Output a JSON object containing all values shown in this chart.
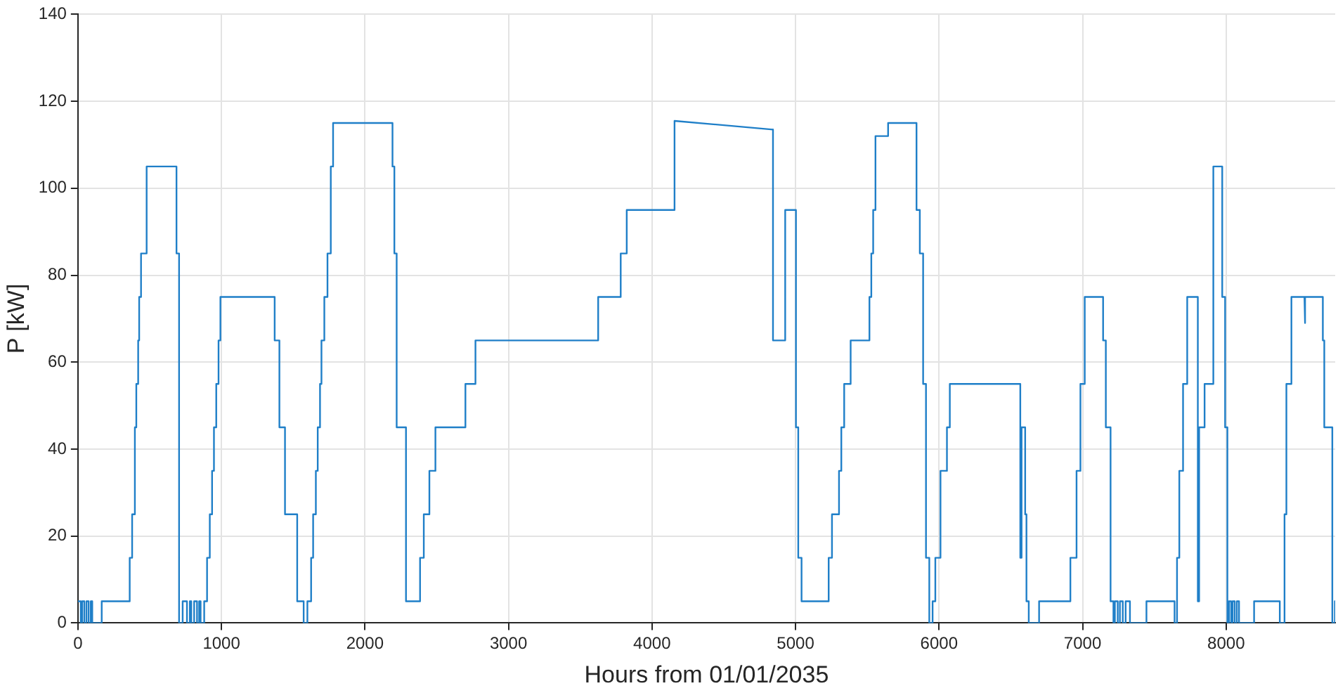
{
  "chart_data": {
    "type": "line",
    "xlabel": "Hours from 01/01/2035",
    "ylabel": "P [kW]",
    "xlim": [
      0,
      8760
    ],
    "xticks": [
      0,
      1000,
      2000,
      3000,
      4000,
      5000,
      6000,
      7000,
      8000
    ],
    "ylim": [
      0,
      140
    ],
    "yticks": [
      0,
      20,
      40,
      60,
      80,
      100,
      120,
      140
    ],
    "grid": true,
    "marker": "none",
    "line_style": "solid",
    "series": [
      {
        "color": "#1f7fc8",
        "x": [
          0,
          20,
          20,
          30,
          30,
          45,
          45,
          60,
          60,
          75,
          75,
          90,
          90,
          100,
          100,
          166,
          166,
          361,
          361,
          378,
          378,
          397,
          397,
          407,
          407,
          420,
          420,
          427,
          427,
          440,
          440,
          479,
          479,
          687,
          687,
          705,
          705,
          730,
          730,
          760,
          760,
          780,
          780,
          790,
          790,
          810,
          810,
          830,
          830,
          845,
          845,
          855,
          855,
          880,
          880,
          900,
          900,
          919,
          919,
          935,
          935,
          948,
          948,
          964,
          964,
          980,
          980,
          993,
          993,
          1371,
          1371,
          1404,
          1404,
          1443,
          1443,
          1528,
          1528,
          1573,
          1573,
          1599,
          1599,
          1625,
          1625,
          1639,
          1639,
          1658,
          1658,
          1671,
          1671,
          1687,
          1687,
          1697,
          1697,
          1717,
          1717,
          1739,
          1739,
          1762,
          1762,
          1778,
          1778,
          2192,
          2192,
          2205,
          2205,
          2221,
          2221,
          2286,
          2286,
          2384,
          2384,
          2410,
          2410,
          2449,
          2449,
          2491,
          2491,
          2700,
          2700,
          2770,
          2770,
          3625,
          3625,
          3782,
          3782,
          3824,
          3824,
          4157,
          4157,
          4843,
          4843,
          4928,
          4928,
          5003,
          5003,
          5019,
          5019,
          5042,
          5042,
          5231,
          5231,
          5254,
          5254,
          5303,
          5303,
          5319,
          5319,
          5339,
          5339,
          5384,
          5384,
          5515,
          5515,
          5528,
          5528,
          5541,
          5541,
          5557,
          5557,
          5645,
          5645,
          5843,
          5843,
          5866,
          5866,
          5889,
          5889,
          5909,
          5909,
          5932,
          5932,
          5955,
          5955,
          5974,
          5974,
          6010,
          6010,
          6055,
          6055,
          6075,
          6075,
          6566,
          6566,
          6575,
          6575,
          6600,
          6600,
          6609,
          6609,
          6625,
          6625,
          6697,
          6697,
          6915,
          6915,
          6958,
          6958,
          6985,
          6985,
          7015,
          7015,
          7143,
          7143,
          7162,
          7162,
          7195,
          7195,
          7215,
          7215,
          7225,
          7225,
          7245,
          7245,
          7260,
          7260,
          7280,
          7280,
          7300,
          7300,
          7330,
          7330,
          7445,
          7445,
          7641,
          7641,
          7658,
          7658,
          7674,
          7674,
          7700,
          7700,
          7729,
          7729,
          7803,
          7803,
          7812,
          7812,
          7850,
          7850,
          7911,
          7911,
          7973,
          7973,
          7993,
          7993,
          8009,
          8009,
          8020,
          8020,
          8035,
          8035,
          8045,
          8045,
          8060,
          8060,
          8075,
          8075,
          8090,
          8090,
          8195,
          8195,
          8374,
          8374,
          8407,
          8407,
          8420,
          8420,
          8455,
          8455,
          8546,
          8546,
          8552,
          8552,
          8674,
          8674,
          8684,
          8684,
          8740,
          8740,
          8758,
          8758,
          8760
        ],
        "values": [
          5,
          5,
          0,
          0,
          5,
          5,
          0,
          0,
          5,
          5,
          0,
          0,
          5,
          5,
          0,
          0,
          5,
          5,
          15,
          15,
          25,
          25,
          45,
          45,
          55,
          55,
          65,
          65,
          75,
          75,
          85,
          85,
          105,
          105,
          85,
          85,
          0,
          0,
          5,
          5,
          0,
          0,
          5,
          5,
          0,
          0,
          5,
          5,
          0,
          0,
          5,
          5,
          0,
          0,
          5,
          5,
          15,
          15,
          25,
          25,
          35,
          35,
          45,
          45,
          55,
          55,
          65,
          65,
          75,
          75,
          65,
          65,
          45,
          45,
          25,
          25,
          5,
          5,
          0,
          0,
          5,
          5,
          15,
          15,
          25,
          25,
          35,
          35,
          45,
          45,
          55,
          55,
          65,
          65,
          75,
          75,
          85,
          85,
          105,
          105,
          115,
          115,
          105,
          105,
          85,
          85,
          45,
          45,
          5,
          5,
          15,
          15,
          25,
          25,
          35,
          35,
          45,
          45,
          55,
          55,
          65,
          65,
          75,
          75,
          85,
          85,
          95,
          95,
          115.5,
          113.5,
          65,
          65,
          95,
          95,
          45,
          45,
          15,
          15,
          5,
          5,
          15,
          15,
          25,
          25,
          35,
          35,
          45,
          45,
          55,
          55,
          65,
          65,
          75,
          75,
          85,
          85,
          95,
          95,
          112,
          112,
          115,
          115,
          95,
          95,
          85,
          85,
          55,
          55,
          15,
          15,
          0,
          0,
          5,
          5,
          15,
          15,
          35,
          35,
          45,
          45,
          55,
          55,
          15,
          15,
          45,
          45,
          25,
          25,
          5,
          5,
          0,
          0,
          5,
          5,
          15,
          15,
          35,
          35,
          55,
          55,
          75,
          75,
          65,
          65,
          45,
          45,
          5,
          5,
          0,
          0,
          5,
          5,
          0,
          0,
          5,
          5,
          0,
          0,
          5,
          5,
          0,
          0,
          5,
          5,
          0,
          0,
          15,
          15,
          35,
          35,
          55,
          55,
          75,
          75,
          5,
          5,
          45,
          45,
          55,
          55,
          105,
          105,
          75,
          75,
          45,
          45,
          0,
          0,
          5,
          5,
          0,
          0,
          5,
          5,
          0,
          0,
          5,
          5,
          0,
          0,
          5,
          5,
          0,
          0,
          25,
          25,
          55,
          55,
          75,
          75,
          69,
          69,
          75,
          75,
          65,
          65,
          45,
          45,
          0,
          0,
          5,
          5
        ]
      }
    ]
  }
}
